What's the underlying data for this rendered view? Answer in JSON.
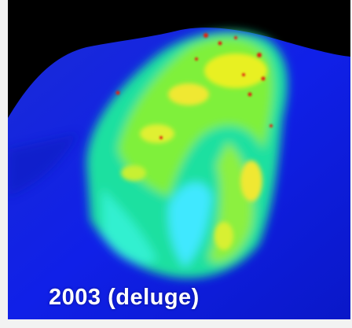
{
  "caption": "2003 (deluge)"
}
